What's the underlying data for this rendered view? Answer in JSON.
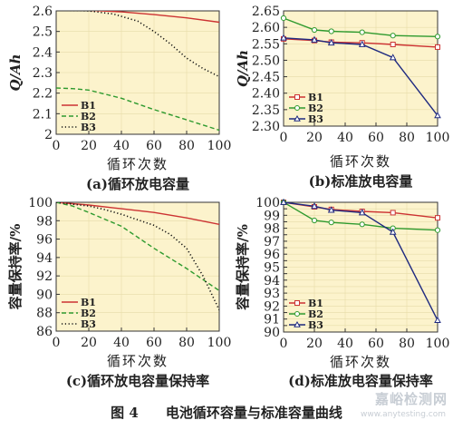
{
  "figure_caption": "图 4　　电池循环容量与标准容量曲线",
  "watermark": "嘉峪检测网",
  "watermark_url": "www.anytesting.com",
  "colors": {
    "B1": "#cc3333",
    "B2": "#2e9a2e",
    "B3": "#1f2a80",
    "plot_bg": "#fcf3cc",
    "grid": "#e6dca8",
    "axis": "#333333"
  },
  "chart_data": [
    {
      "id": "a",
      "type": "line",
      "caption": "(a)循环放电容量",
      "xlabel": "循环次数",
      "ylabel": "Q/Ah",
      "xlim": [
        0,
        100
      ],
      "ylim": [
        2.0,
        2.6
      ],
      "xticks": [
        0,
        20,
        40,
        60,
        80,
        100
      ],
      "yticks": [
        2.0,
        2.1,
        2.2,
        2.3,
        2.4,
        2.5,
        2.6
      ],
      "legend": "bottom-left",
      "series": [
        {
          "name": "B1",
          "style": "solid",
          "x": [
            0,
            20,
            40,
            60,
            80,
            100
          ],
          "y": [
            2.61,
            2.603,
            2.595,
            2.582,
            2.566,
            2.545
          ]
        },
        {
          "name": "B2",
          "style": "dash",
          "x": [
            0,
            10,
            20,
            40,
            60,
            80,
            100
          ],
          "y": [
            2.225,
            2.222,
            2.215,
            2.175,
            2.12,
            2.07,
            2.02
          ]
        },
        {
          "name": "B3",
          "style": "dot",
          "x": [
            0,
            20,
            35,
            50,
            60,
            70,
            80,
            90,
            100
          ],
          "y": [
            2.605,
            2.6,
            2.585,
            2.55,
            2.5,
            2.44,
            2.37,
            2.32,
            2.28
          ]
        }
      ]
    },
    {
      "id": "b",
      "type": "line",
      "caption": "(b)标准放电容量",
      "xlabel": "循环次数",
      "ylabel": "Q/Ah",
      "xlim": [
        0,
        100
      ],
      "ylim": [
        2.3,
        2.65
      ],
      "xticks": [
        0,
        20,
        40,
        60,
        80,
        100
      ],
      "yticks": [
        2.3,
        2.35,
        2.4,
        2.45,
        2.5,
        2.55,
        2.6,
        2.65
      ],
      "ytick_labels": [
        "2.30",
        "2.35",
        "2.40",
        "2.45",
        "2.50",
        "2.55",
        "2.60",
        "2.65"
      ],
      "legend": "bottom-left",
      "series": [
        {
          "name": "B1",
          "marker": "square",
          "x": [
            0,
            20,
            31,
            51,
            71,
            100
          ],
          "y": [
            2.565,
            2.56,
            2.555,
            2.553,
            2.548,
            2.54
          ]
        },
        {
          "name": "B2",
          "marker": "circle",
          "x": [
            0,
            20,
            31,
            51,
            71,
            100
          ],
          "y": [
            2.628,
            2.592,
            2.588,
            2.585,
            2.575,
            2.572
          ]
        },
        {
          "name": "B3",
          "marker": "triangle",
          "x": [
            0,
            20,
            31,
            51,
            71,
            100
          ],
          "y": [
            2.568,
            2.562,
            2.553,
            2.548,
            2.508,
            2.332
          ]
        }
      ]
    },
    {
      "id": "c",
      "type": "line",
      "caption": "(c)循环放电容量保持率",
      "xlabel": "循环次数",
      "ylabel": "容量保持率/%",
      "xlim": [
        0,
        100
      ],
      "ylim": [
        86,
        100
      ],
      "xticks": [
        0,
        20,
        40,
        60,
        80,
        100
      ],
      "yticks": [
        86,
        88,
        90,
        92,
        94,
        96,
        98,
        100
      ],
      "legend": "bottom-left",
      "series": [
        {
          "name": "B1",
          "style": "solid",
          "x": [
            0,
            20,
            40,
            60,
            80,
            100
          ],
          "y": [
            100,
            99.7,
            99.3,
            98.9,
            98.3,
            97.6
          ]
        },
        {
          "name": "B2",
          "style": "dash",
          "x": [
            0,
            10,
            20,
            40,
            60,
            80,
            100
          ],
          "y": [
            100,
            99.6,
            98.9,
            97.4,
            95.0,
            92.8,
            90.4
          ]
        },
        {
          "name": "B3",
          "style": "dot",
          "x": [
            0,
            20,
            30,
            40,
            50,
            60,
            70,
            80,
            90,
            100
          ],
          "y": [
            100,
            99.6,
            99.2,
            98.7,
            98.1,
            97.5,
            96.5,
            95.0,
            92.0,
            88.3
          ]
        }
      ]
    },
    {
      "id": "d",
      "type": "line",
      "caption": "(d)标准放电容量保持率",
      "xlabel": "循环次数",
      "ylabel": "容量保持率/%",
      "xlim": [
        0,
        100
      ],
      "ylim": [
        90,
        100
      ],
      "xticks": [
        0,
        20,
        40,
        60,
        80,
        100
      ],
      "yticks": [
        90,
        90.5,
        91,
        91.5,
        92,
        92.5,
        93,
        93.5,
        94,
        94.5,
        95,
        95.5,
        96,
        96.5,
        97,
        97.5,
        98,
        98.5,
        99,
        99.5,
        100
      ],
      "ytick_labels": [
        "90",
        "",
        "91",
        "",
        "92",
        "",
        "93",
        "",
        "94",
        "",
        "95",
        "",
        "96",
        "",
        "97",
        "",
        "98",
        "",
        "99",
        "",
        "100"
      ],
      "legend": "bottom-left",
      "series": [
        {
          "name": "B1",
          "marker": "square",
          "x": [
            0,
            20,
            31,
            51,
            71,
            100
          ],
          "y": [
            100,
            99.65,
            99.45,
            99.3,
            99.2,
            98.8
          ]
        },
        {
          "name": "B2",
          "marker": "circle",
          "x": [
            0,
            20,
            31,
            51,
            71,
            100
          ],
          "y": [
            100,
            98.6,
            98.45,
            98.3,
            98.0,
            97.85
          ]
        },
        {
          "name": "B3",
          "marker": "triangle",
          "x": [
            0,
            20,
            31,
            51,
            71,
            100
          ],
          "y": [
            100,
            99.7,
            99.4,
            99.2,
            97.7,
            90.9
          ]
        }
      ]
    }
  ]
}
